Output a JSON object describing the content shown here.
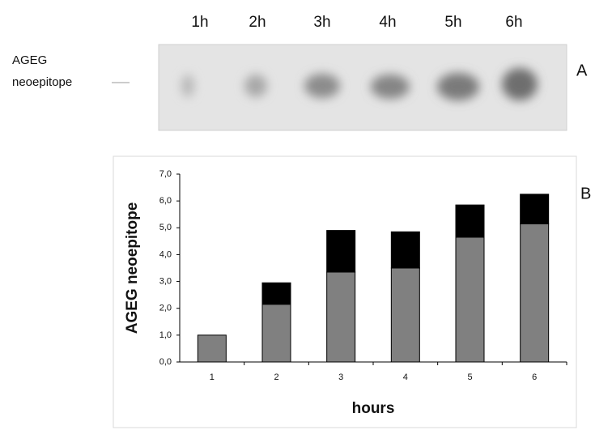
{
  "blot": {
    "lanes": [
      "1h",
      "2h",
      "3h",
      "4h",
      "5h",
      "6h"
    ],
    "marker_label": [
      "AGEG",
      "neoepitope"
    ],
    "panel_label": "A"
  },
  "chart_data": {
    "type": "stacked_bar",
    "panel_label": "B",
    "y_label": "AGEG neoepitope",
    "x_label": "hours",
    "categories": [
      "1",
      "2",
      "3",
      "4",
      "5",
      "6"
    ],
    "series": [
      {
        "color": "#808080",
        "values": [
          1.0,
          2.15,
          3.35,
          3.5,
          4.65,
          5.15
        ]
      },
      {
        "color": "#000000",
        "values": [
          0,
          0.8,
          1.55,
          1.35,
          1.2,
          1.1
        ]
      }
    ],
    "ylim": [
      0,
      7
    ],
    "yticks": [
      {
        "value": 0,
        "label": "0,0"
      },
      {
        "value": 1,
        "label": "1,0"
      },
      {
        "value": 2,
        "label": "2,0"
      },
      {
        "value": 3,
        "label": "3,0"
      },
      {
        "value": 4,
        "label": "4,0"
      },
      {
        "value": 5,
        "label": "5,0"
      },
      {
        "value": 6,
        "label": "6,0"
      },
      {
        "value": 7,
        "label": "7,0"
      }
    ]
  }
}
